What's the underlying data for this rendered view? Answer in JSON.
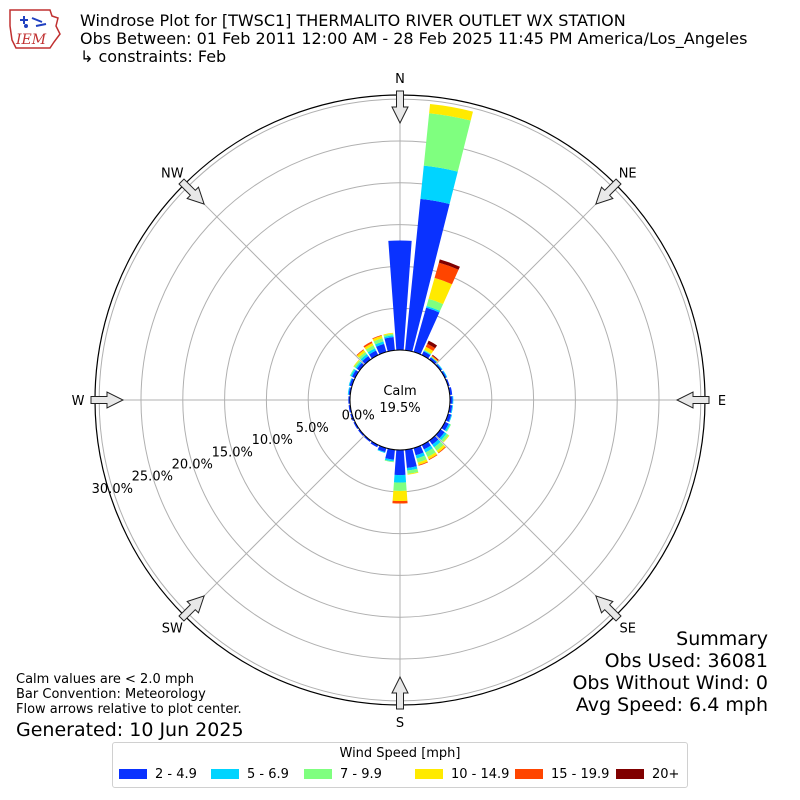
{
  "title": {
    "line1": "Windrose Plot for [TWSC1] THERMALITO RIVER OUTLET WX STATION",
    "line2": "Obs Between: 01 Feb 2011 12:00 AM - 28 Feb 2025 11:45 PM America/Los_Angeles",
    "line3": " ↳ constraints: Feb"
  },
  "logo_text": "IEM",
  "summary": {
    "heading": "Summary",
    "obs_used": "Obs Used: 36081",
    "obs_without_wind": "Obs Without Wind: 0",
    "avg_speed": "Avg Speed: 6.4 mph"
  },
  "notes": {
    "calm": "Calm values are < 2.0 mph",
    "convention": "Bar Convention: Meteorology",
    "flow": "Flow arrows relative to plot center."
  },
  "generated": "Generated: 10 Jun 2025",
  "chart_data": {
    "type": "windrose",
    "calm_label": "Calm",
    "calm_percent": "19.5%",
    "radial_labels": [
      "0.0%",
      "5.0%",
      "10.0%",
      "15.0%",
      "20.0%",
      "25.0%",
      "30.0%"
    ],
    "radial_ticks": [
      0,
      5,
      10,
      15,
      20,
      25,
      30
    ],
    "directions": [
      "N",
      "NE",
      "E",
      "SE",
      "S",
      "SW",
      "W",
      "NW"
    ],
    "bin_angles_deg": [
      0,
      10,
      20,
      30,
      40,
      50,
      60,
      70,
      80,
      90,
      100,
      110,
      120,
      130,
      140,
      150,
      160,
      170,
      180,
      190,
      200,
      210,
      220,
      230,
      240,
      250,
      260,
      270,
      280,
      290,
      300,
      310,
      320,
      330,
      340,
      350
    ],
    "legend_title": "Wind Speed [mph]",
    "bins": [
      "2 - 4.9",
      "5 - 6.9",
      "7 - 9.9",
      "10 - 14.9",
      "15 - 19.9",
      "20+"
    ],
    "colors": [
      "#0a32ff",
      "#00d4ff",
      "#7fff7f",
      "#ffea00",
      "#ff4500",
      "#800000"
    ],
    "values": [
      [
        13.1,
        0,
        0,
        0,
        0,
        0
      ],
      [
        18.2,
        4.0,
        6.3,
        1.1,
        0,
        0
      ],
      [
        5.5,
        0.2,
        0.9,
        2.6,
        1.9,
        0.4
      ],
      [
        0.5,
        0.1,
        0.1,
        0.4,
        0.4,
        0.4
      ],
      [
        0.3,
        0.1,
        0,
        0.1,
        0.1,
        0.1
      ],
      [
        0.2,
        0.1,
        0,
        0,
        0,
        0
      ],
      [
        0.2,
        0.1,
        0,
        0,
        0,
        0
      ],
      [
        0.2,
        0,
        0,
        0,
        0,
        0
      ],
      [
        0.3,
        0,
        0,
        0,
        0,
        0
      ],
      [
        0.3,
        0.1,
        0,
        0,
        0,
        0
      ],
      [
        0.3,
        0.1,
        0,
        0,
        0,
        0
      ],
      [
        0.4,
        0.1,
        0,
        0,
        0,
        0
      ],
      [
        0.5,
        0.2,
        0.1,
        0,
        0,
        0
      ],
      [
        0.6,
        0.3,
        0.3,
        0.1,
        0,
        0
      ],
      [
        0.6,
        0.4,
        0.5,
        0.3,
        0.1,
        0
      ],
      [
        0.6,
        0.4,
        0.6,
        0.3,
        0.1,
        0
      ],
      [
        0.9,
        0.4,
        0.5,
        0.3,
        0.1,
        0
      ],
      [
        2.2,
        0.3,
        0.4,
        0.1,
        0,
        0
      ],
      [
        3.0,
        0.9,
        1.0,
        1.2,
        0.3,
        0
      ],
      [
        1.2,
        0.2,
        0.1,
        0,
        0,
        0
      ],
      [
        0.5,
        0.1,
        0,
        0,
        0,
        0
      ],
      [
        0.3,
        0,
        0,
        0,
        0,
        0
      ],
      [
        0.2,
        0,
        0,
        0,
        0,
        0
      ],
      [
        0.2,
        0,
        0,
        0,
        0,
        0
      ],
      [
        0.2,
        0,
        0,
        0,
        0,
        0
      ],
      [
        0.2,
        0,
        0,
        0,
        0,
        0
      ],
      [
        0.2,
        0,
        0,
        0,
        0,
        0
      ],
      [
        0.2,
        0,
        0,
        0,
        0,
        0
      ],
      [
        0.2,
        0.1,
        0,
        0,
        0,
        0
      ],
      [
        0.3,
        0.1,
        0,
        0,
        0,
        0
      ],
      [
        0.4,
        0.2,
        0.1,
        0,
        0,
        0
      ],
      [
        0.4,
        0.2,
        0.2,
        0.1,
        0,
        0
      ],
      [
        0.5,
        0.3,
        0.3,
        0.3,
        0.1,
        0
      ],
      [
        0.6,
        0.3,
        0.4,
        0.3,
        0.2,
        0
      ],
      [
        1.0,
        0.3,
        0.4,
        0.3,
        0.1,
        0
      ],
      [
        1.6,
        0.2,
        0.2,
        0.1,
        0,
        0
      ]
    ]
  }
}
